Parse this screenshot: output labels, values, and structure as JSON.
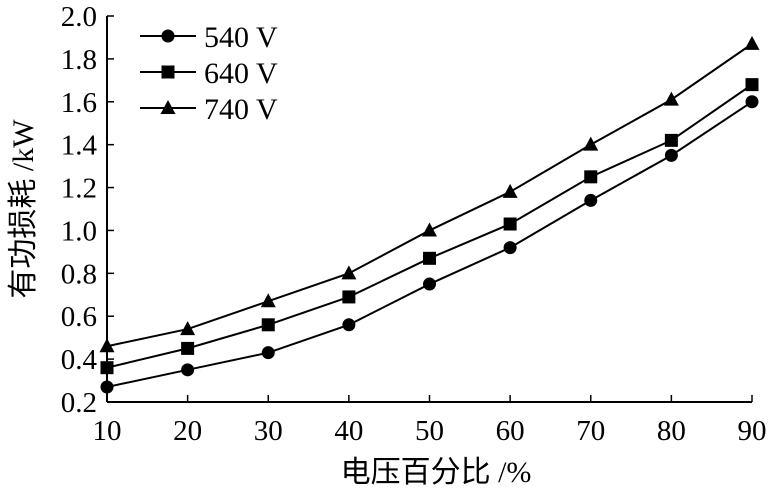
{
  "chart_data": {
    "type": "line",
    "x": [
      10,
      20,
      30,
      40,
      50,
      60,
      70,
      80,
      90
    ],
    "xlabel": "电压百分比 /%",
    "ylabel": "有功损耗 /kW",
    "xlim": [
      10,
      90
    ],
    "ylim": [
      0.2,
      2.0
    ],
    "xticks": [
      10,
      20,
      30,
      40,
      50,
      60,
      70,
      80,
      90
    ],
    "yticks": [
      "0.2",
      "0.4",
      "0.6",
      "0.8",
      "1.0",
      "1.2",
      "1.4",
      "1.6",
      "1.8",
      "2.0"
    ],
    "grid": false,
    "legend_position": "top-left",
    "series": [
      {
        "name": "540 V",
        "marker": "circle",
        "color": "#000000",
        "values": [
          0.27,
          0.35,
          0.43,
          0.56,
          0.75,
          0.92,
          1.14,
          1.35,
          1.6
        ]
      },
      {
        "name": "640 V",
        "marker": "square",
        "color": "#000000",
        "values": [
          0.36,
          0.45,
          0.56,
          0.69,
          0.87,
          1.03,
          1.25,
          1.42,
          1.68
        ]
      },
      {
        "name": "740 V",
        "marker": "triangle",
        "color": "#000000",
        "values": [
          0.46,
          0.54,
          0.67,
          0.8,
          1.0,
          1.18,
          1.4,
          1.61,
          1.87
        ]
      }
    ]
  }
}
